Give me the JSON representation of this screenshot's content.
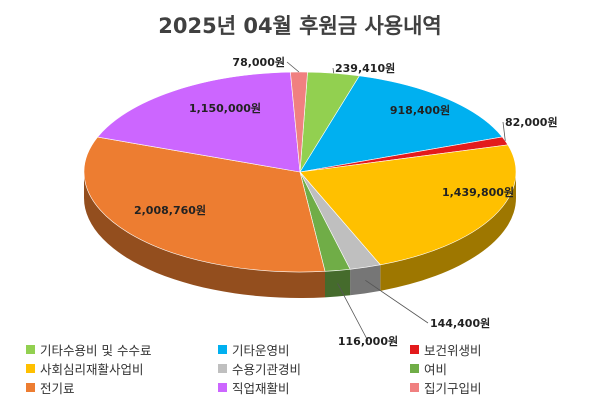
{
  "chart_data": {
    "type": "pie",
    "title": "2025년 04월 후원금 사용내역",
    "unit": "원",
    "slices": [
      {
        "name": "기타수용비 및 수수료",
        "value": 239410,
        "label": "239,410원",
        "color": "#92D050"
      },
      {
        "name": "기타운영비",
        "value": 918400,
        "label": "918,400원",
        "color": "#00B0F0"
      },
      {
        "name": "보건위생비",
        "value": 82000,
        "label": "82,000원",
        "color": "#E31A1C"
      },
      {
        "name": "사회심리재활사업비",
        "value": 1439800,
        "label": "1,439,800원",
        "color": "#FFC000"
      },
      {
        "name": "수용기관경비",
        "value": 144400,
        "label": "144,400원",
        "color": "#BFBFBF"
      },
      {
        "name": "여비",
        "value": 116000,
        "label": "116,000원",
        "color": "#70AD47"
      },
      {
        "name": "전기료",
        "value": 2008760,
        "label": "2,008,760원",
        "color": "#ED7D31"
      },
      {
        "name": "직업재활비",
        "value": 1150000,
        "label": "1,150,000원",
        "color": "#CC66FF"
      },
      {
        "name": "집기구입비",
        "value": 78000,
        "label": "78,000원",
        "color": "#F08080"
      }
    ],
    "legend_position": "bottom"
  }
}
